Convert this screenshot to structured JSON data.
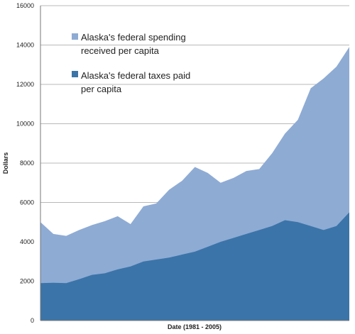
{
  "chart_data": {
    "type": "area",
    "title": "",
    "xlabel": "Date (1981 - 2005)",
    "ylabel": "Dollars",
    "x": [
      1981,
      1982,
      1983,
      1984,
      1985,
      1986,
      1987,
      1988,
      1989,
      1990,
      1991,
      1992,
      1993,
      1994,
      1995,
      1996,
      1997,
      1998,
      1999,
      2000,
      2001,
      2002,
      2003,
      2004,
      2005
    ],
    "ylim": [
      0,
      16000
    ],
    "yticks": [
      "0",
      "2000",
      "4000",
      "6000",
      "8000",
      "10000",
      "12000",
      "14000",
      "16000"
    ],
    "grid": true,
    "legend_position": "top-left",
    "series": [
      {
        "name": "Alaska's federal spending received per capita",
        "color": "#8eabd4",
        "values": [
          5000,
          4400,
          4300,
          4600,
          4850,
          5050,
          5300,
          4900,
          5800,
          5950,
          6650,
          7100,
          7800,
          7500,
          7000,
          7250,
          7600,
          7700,
          8500,
          9500,
          10200,
          11800,
          12300,
          12900,
          13900
        ]
      },
      {
        "name": "Alaska's federal taxes paid per capita",
        "color": "#3b74a8",
        "values": [
          1900,
          1920,
          1900,
          2100,
          2320,
          2400,
          2600,
          2750,
          3000,
          3100,
          3200,
          3350,
          3500,
          3750,
          4000,
          4200,
          4400,
          4600,
          4800,
          5100,
          5000,
          4800,
          4600,
          4800,
          5500
        ]
      }
    ]
  }
}
